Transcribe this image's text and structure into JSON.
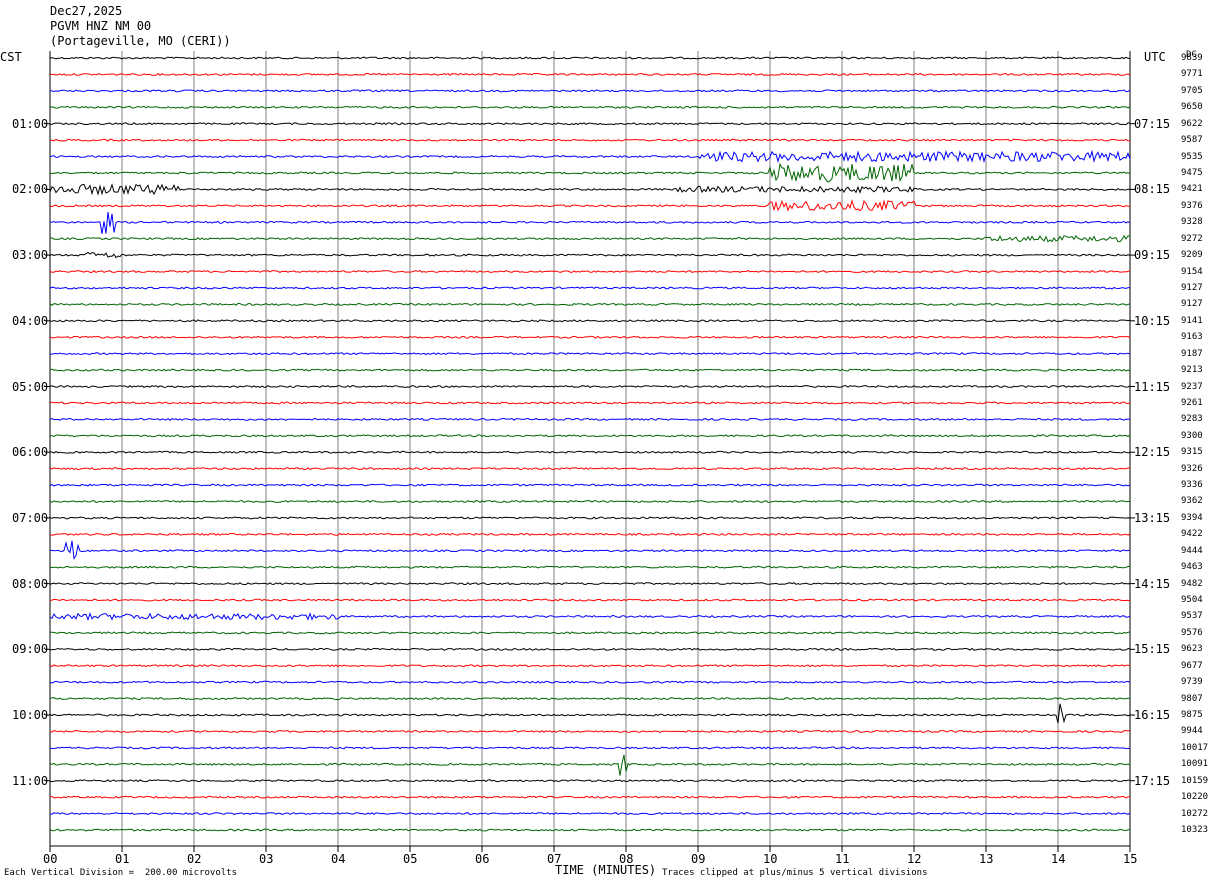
{
  "header": {
    "date": "Dec27,2025",
    "station": "PGVM HNZ NM 00",
    "location": "(Portageville, MO (CERI))"
  },
  "left_timezone": "CST",
  "right_timezone": "UTC",
  "dc_label": "DC",
  "footer": {
    "scale_note": "Each Vertical Division =  200.00 microvolts",
    "clip_note": "Traces clipped at plus/minus 5 vertical divisions",
    "x_axis_title": "TIME (MINUTES)"
  },
  "colors": {
    "trace_cycle": [
      "#000000",
      "#ff0000",
      "#0000ff",
      "#006400"
    ],
    "grid": "#808080"
  },
  "chart_data": {
    "type": "line",
    "title": "PGVM HNZ NM 00",
    "xlabel": "TIME (MINUTES)",
    "xlim": [
      0,
      15
    ],
    "x_ticks": [
      "00",
      "01",
      "02",
      "03",
      "04",
      "05",
      "06",
      "07",
      "08",
      "09",
      "10",
      "11",
      "12",
      "13",
      "14",
      "15"
    ],
    "rows": 48,
    "left_hour_labels": [
      "01:00",
      "02:00",
      "03:00",
      "04:00",
      "05:00",
      "06:00",
      "07:00",
      "08:00",
      "09:00",
      "10:00",
      "11:00"
    ],
    "right_hour_labels": [
      "07:15",
      "08:15",
      "09:15",
      "10:15",
      "11:15",
      "12:15",
      "13:15",
      "14:15",
      "15:15",
      "16:15",
      "17:15"
    ],
    "dc_values": [
      "9839",
      "9771",
      "9705",
      "9650",
      "9622",
      "9587",
      "9535",
      "9475",
      "9421",
      "9376",
      "9328",
      "9272",
      "9209",
      "9154",
      "9127",
      "9127",
      "9141",
      "9163",
      "9187",
      "9213",
      "9237",
      "9261",
      "9283",
      "9300",
      "9315",
      "9326",
      "9336",
      "9362",
      "9394",
      "9422",
      "9444",
      "9463",
      "9482",
      "9504",
      "9537",
      "9576",
      "9623",
      "9677",
      "9739",
      "9807",
      "9875",
      "9944",
      "10017",
      "10091",
      "10159",
      "10220",
      "10272",
      "10323"
    ],
    "activity": [
      {
        "row": 6,
        "x_start": 9.0,
        "x_end": 15.0,
        "level": "high"
      },
      {
        "row": 7,
        "x_start": 10.0,
        "x_end": 12.0,
        "level": "very-high"
      },
      {
        "row": 8,
        "x_start": 0.0,
        "x_end": 1.8,
        "level": "high"
      },
      {
        "row": 8,
        "x_start": 8.7,
        "x_end": 12.0,
        "level": "medium"
      },
      {
        "row": 9,
        "x_start": 10.0,
        "x_end": 12.0,
        "level": "high"
      },
      {
        "row": 10,
        "x_start": 0.7,
        "x_end": 0.9,
        "level": "spike"
      },
      {
        "row": 11,
        "x_start": 13.0,
        "x_end": 15.0,
        "level": "medium"
      },
      {
        "row": 12,
        "x_start": 0.5,
        "x_end": 1.0,
        "level": "medium"
      },
      {
        "row": 30,
        "x_start": 0.2,
        "x_end": 0.4,
        "level": "spike"
      },
      {
        "row": 34,
        "x_start": 0.0,
        "x_end": 4.0,
        "level": "medium"
      },
      {
        "row": 40,
        "x_start": 14.0,
        "x_end": 14.1,
        "level": "spike"
      },
      {
        "row": 43,
        "x_start": 7.9,
        "x_end": 8.0,
        "level": "spike"
      }
    ]
  }
}
